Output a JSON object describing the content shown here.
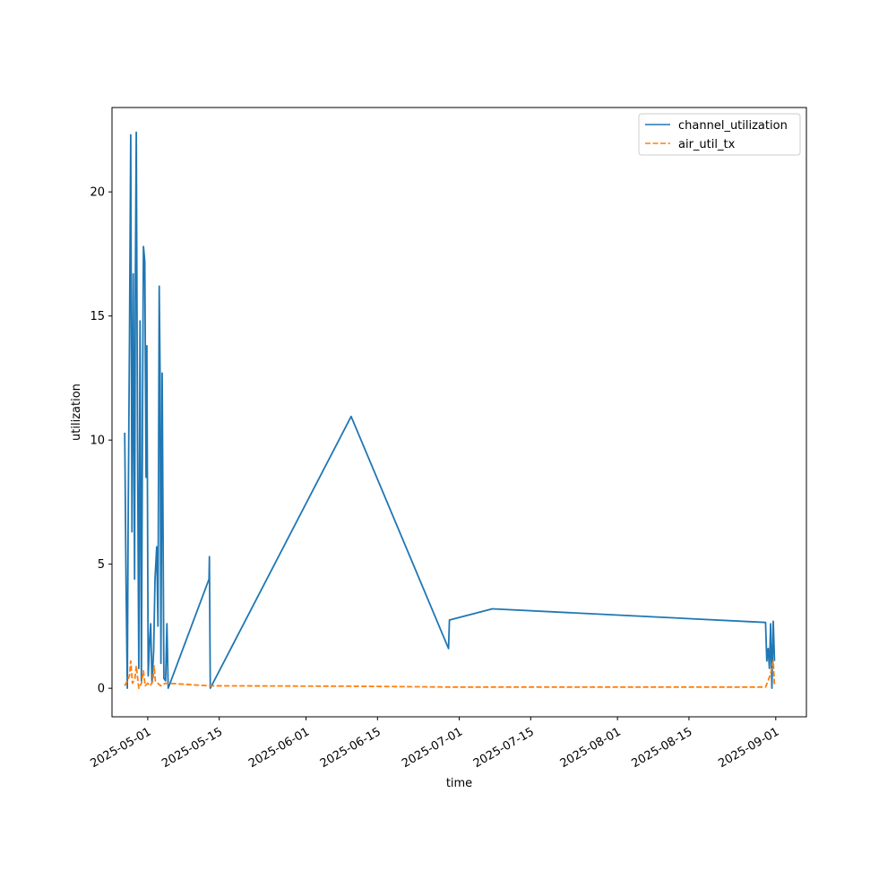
{
  "chart_data": {
    "type": "line",
    "title": "",
    "xlabel": "time",
    "ylabel": "utilization",
    "x_ticks": [
      "2025-05-01",
      "2025-05-15",
      "2025-06-01",
      "2025-06-15",
      "2025-07-01",
      "2025-07-15",
      "2025-08-01",
      "2025-08-15",
      "2025-09-01"
    ],
    "y_ticks": [
      0,
      5,
      10,
      15,
      20
    ],
    "ylim": [
      -1.15,
      23.4
    ],
    "xlim": [
      "2025-04-24T00:00",
      "2025-09-07T00:00"
    ],
    "legend": "top-right",
    "grid": false,
    "series": [
      {
        "name": "channel_utilization",
        "color": "#1f77b4",
        "style": "solid",
        "points": [
          [
            "2025-04-26T12:00",
            10.3
          ],
          [
            "2025-04-26T18:00",
            4.2
          ],
          [
            "2025-04-27T00:00",
            0.0
          ],
          [
            "2025-04-27T04:00",
            6.5
          ],
          [
            "2025-04-27T10:00",
            14.0
          ],
          [
            "2025-04-27T16:00",
            22.3
          ],
          [
            "2025-04-27T22:00",
            6.3
          ],
          [
            "2025-04-28T04:00",
            16.7
          ],
          [
            "2025-04-28T10:00",
            4.4
          ],
          [
            "2025-04-28T14:00",
            16.6
          ],
          [
            "2025-04-28T18:00",
            22.4
          ],
          [
            "2025-04-29T00:00",
            10.0
          ],
          [
            "2025-04-29T06:00",
            0.8
          ],
          [
            "2025-04-29T12:00",
            14.8
          ],
          [
            "2025-04-29T18:00",
            0.3
          ],
          [
            "2025-04-30T00:00",
            12.0
          ],
          [
            "2025-04-30T04:00",
            17.8
          ],
          [
            "2025-04-30T10:00",
            17.2
          ],
          [
            "2025-04-30T16:00",
            8.5
          ],
          [
            "2025-04-30T20:00",
            13.8
          ],
          [
            "2025-05-01T02:00",
            0.5
          ],
          [
            "2025-05-01T08:00",
            1.8
          ],
          [
            "2025-05-01T14:00",
            2.6
          ],
          [
            "2025-05-01T20:00",
            0.2
          ],
          [
            "2025-05-02T04:00",
            1.5
          ],
          [
            "2025-05-02T10:00",
            4.4
          ],
          [
            "2025-05-02T18:00",
            5.7
          ],
          [
            "2025-05-03T00:00",
            2.5
          ],
          [
            "2025-05-03T06:00",
            16.2
          ],
          [
            "2025-05-03T10:00",
            12.5
          ],
          [
            "2025-05-03T14:00",
            1.0
          ],
          [
            "2025-05-03T20:00",
            12.7
          ],
          [
            "2025-05-04T04:00",
            0.4
          ],
          [
            "2025-05-04T12:00",
            0.3
          ],
          [
            "2025-05-04T18:00",
            2.6
          ],
          [
            "2025-05-05T00:00",
            0.0
          ],
          [
            "2025-05-13T00:00",
            4.4
          ],
          [
            "2025-05-13T02:00",
            5.3
          ],
          [
            "2025-05-13T06:00",
            0.0
          ],
          [
            "2025-06-09T20:00",
            10.95
          ],
          [
            "2025-06-28T22:00",
            1.6
          ],
          [
            "2025-06-29T02:00",
            2.75
          ],
          [
            "2025-07-07T12:00",
            3.2
          ],
          [
            "2025-08-30T00:00",
            2.65
          ],
          [
            "2025-08-30T06:00",
            1.1
          ],
          [
            "2025-08-30T12:00",
            1.6
          ],
          [
            "2025-08-30T18:00",
            0.8
          ],
          [
            "2025-08-31T00:00",
            2.6
          ],
          [
            "2025-08-31T06:00",
            0.0
          ],
          [
            "2025-08-31T12:00",
            2.7
          ],
          [
            "2025-08-31T18:00",
            1.1
          ]
        ]
      },
      {
        "name": "air_util_tx",
        "color": "#ff7f0e",
        "style": "dashed",
        "points": [
          [
            "2025-04-26T12:00",
            0.1
          ],
          [
            "2025-04-27T00:00",
            0.3
          ],
          [
            "2025-04-27T10:00",
            0.5
          ],
          [
            "2025-04-27T16:00",
            1.1
          ],
          [
            "2025-04-28T00:00",
            0.2
          ],
          [
            "2025-04-28T12:00",
            0.4
          ],
          [
            "2025-04-28T18:00",
            0.9
          ],
          [
            "2025-04-29T06:00",
            0.0
          ],
          [
            "2025-04-29T18:00",
            0.2
          ],
          [
            "2025-04-30T04:00",
            0.7
          ],
          [
            "2025-04-30T12:00",
            0.1
          ],
          [
            "2025-05-01T00:00",
            0.2
          ],
          [
            "2025-05-01T12:00",
            0.1
          ],
          [
            "2025-05-02T00:00",
            0.3
          ],
          [
            "2025-05-02T06:00",
            0.9
          ],
          [
            "2025-05-02T12:00",
            0.3
          ],
          [
            "2025-05-03T00:00",
            0.2
          ],
          [
            "2025-05-03T12:00",
            0.1
          ],
          [
            "2025-05-04T12:00",
            0.2
          ],
          [
            "2025-05-05T00:00",
            0.2
          ],
          [
            "2025-05-13T00:00",
            0.1
          ],
          [
            "2025-06-09T20:00",
            0.08
          ],
          [
            "2025-06-29T00:00",
            0.05
          ],
          [
            "2025-07-07T12:00",
            0.05
          ],
          [
            "2025-08-30T00:00",
            0.05
          ],
          [
            "2025-08-30T12:00",
            0.3
          ],
          [
            "2025-08-31T00:00",
            0.6
          ],
          [
            "2025-08-31T12:00",
            1.1
          ],
          [
            "2025-08-31T18:00",
            0.1
          ]
        ]
      }
    ]
  }
}
